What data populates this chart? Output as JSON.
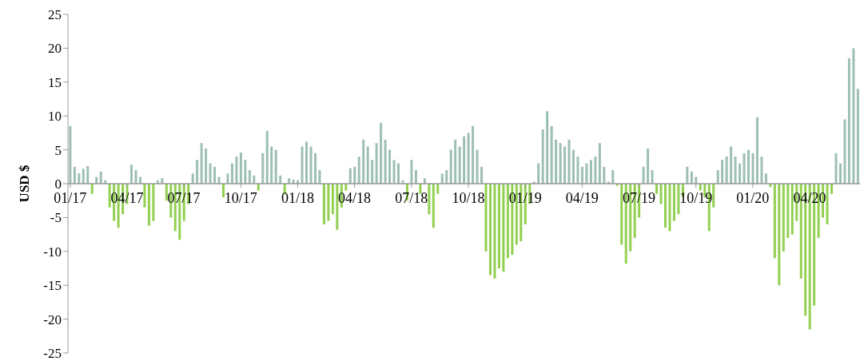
{
  "chart_data": {
    "type": "bar",
    "ylabel": "USD $",
    "categories": [
      "01/17",
      null,
      null,
      null,
      null,
      null,
      null,
      null,
      null,
      null,
      null,
      null,
      null,
      "04/17",
      null,
      null,
      null,
      null,
      null,
      null,
      null,
      null,
      null,
      null,
      null,
      null,
      "07/17",
      null,
      null,
      null,
      null,
      null,
      null,
      null,
      null,
      null,
      null,
      null,
      null,
      "10/17",
      null,
      null,
      null,
      null,
      null,
      null,
      null,
      null,
      null,
      null,
      null,
      null,
      "01/18",
      null,
      null,
      null,
      null,
      null,
      null,
      null,
      null,
      null,
      null,
      null,
      null,
      "04/18",
      null,
      null,
      null,
      null,
      null,
      null,
      null,
      null,
      null,
      null,
      null,
      null,
      "07/18",
      null,
      null,
      null,
      null,
      null,
      null,
      null,
      null,
      null,
      null,
      null,
      null,
      "10/18",
      null,
      null,
      null,
      null,
      null,
      null,
      null,
      null,
      null,
      null,
      null,
      null,
      "01/19",
      null,
      null,
      null,
      null,
      null,
      null,
      null,
      null,
      null,
      null,
      null,
      null,
      "04/19",
      null,
      null,
      null,
      null,
      null,
      null,
      null,
      null,
      null,
      null,
      null,
      null,
      "07/19",
      null,
      null,
      null,
      null,
      null,
      null,
      null,
      null,
      null,
      null,
      null,
      null,
      "10/19",
      null,
      null,
      null,
      null,
      null,
      null,
      null,
      null,
      null,
      null,
      null,
      null,
      "01/20",
      null,
      null,
      null,
      null,
      null,
      null,
      null,
      null,
      null,
      null,
      null,
      null,
      "04/20",
      null,
      null,
      null,
      null,
      null,
      null,
      null,
      null,
      null,
      null,
      null
    ],
    "values": [
      8.5,
      2.5,
      1.5,
      2.2,
      2.6,
      -1.5,
      1,
      1.8,
      0.5,
      -3.5,
      -5.5,
      -6.5,
      -4.5,
      -3,
      2.8,
      2,
      1,
      -3.5,
      -6.2,
      -5.5,
      0.5,
      0.8,
      -2.5,
      -5,
      -7,
      -8.3,
      -5.5,
      -3,
      1.5,
      3.5,
      6,
      5.2,
      3,
      2.5,
      1,
      -2,
      1.5,
      3,
      4,
      4.6,
      3.5,
      2,
      1.2,
      -1,
      4.5,
      7.8,
      5.5,
      5,
      1.2,
      -1.6,
      0.8,
      0.6,
      0.5,
      5.5,
      6.2,
      5.5,
      4.5,
      2,
      -6,
      -5.5,
      -4.5,
      -6.8,
      -3.5,
      -1,
      2.3,
      2.5,
      4,
      6.5,
      5.5,
      3.5,
      6,
      9,
      6.5,
      5,
      3.5,
      3,
      0.5,
      -2.5,
      3.5,
      2,
      -1.5,
      0.8,
      -4.5,
      -6.5,
      -1.5,
      1.5,
      2,
      5,
      6.5,
      5.5,
      7,
      7.5,
      8.5,
      5,
      2.5,
      -10,
      -13.5,
      -14,
      -12.5,
      -13,
      -11,
      -10.5,
      -9,
      -8.5,
      -6,
      -3,
      0.3,
      3,
      8,
      10.7,
      8.5,
      6.5,
      6,
      5.5,
      6.5,
      5,
      4,
      2.5,
      3,
      3.5,
      4,
      6,
      2.5,
      0.3,
      2,
      -0.3,
      -9,
      -11.8,
      -10,
      -8,
      -5,
      2.5,
      5.2,
      2,
      -1.5,
      -3,
      -6.5,
      -7,
      -5.5,
      -4.5,
      -2,
      2.5,
      1.8,
      1,
      -1,
      -2,
      -7,
      -3.5,
      2,
      3.5,
      4,
      5.5,
      4,
      3,
      4.5,
      5,
      4.5,
      9.8,
      4,
      1.5,
      -0.5,
      -11,
      -15,
      -10,
      -8,
      -7.5,
      -5.5,
      -14,
      -19.5,
      -21.5,
      -18,
      -8,
      -5,
      -6,
      -1.5,
      4.5,
      3,
      9.5,
      18.5,
      20,
      14
    ],
    "colors": [
      "#9dbfb2",
      "#9dbfb2",
      "#9dbfb2",
      "#9dbfb2",
      "#9dbfb2",
      "#92d050",
      "#9dbfb2",
      "#9dbfb2",
      "#9dbfb2",
      "#92d050",
      "#92d050",
      "#92d050",
      "#92d050",
      "#92d050",
      "#9dbfb2",
      "#9dbfb2",
      "#9dbfb2",
      "#92d050",
      "#92d050",
      "#92d050",
      "#9dbfb2",
      "#9dbfb2",
      "#92d050",
      "#92d050",
      "#92d050",
      "#92d050",
      "#92d050",
      "#92d050",
      "#9dbfb2",
      "#9dbfb2",
      "#9dbfb2",
      "#9dbfb2",
      "#9dbfb2",
      "#9dbfb2",
      "#9dbfb2",
      "#92d050",
      "#9dbfb2",
      "#9dbfb2",
      "#9dbfb2",
      "#9dbfb2",
      "#9dbfb2",
      "#9dbfb2",
      "#9dbfb2",
      "#92d050",
      "#9dbfb2",
      "#9dbfb2",
      "#9dbfb2",
      "#9dbfb2",
      "#9dbfb2",
      "#92d050",
      "#9dbfb2",
      "#9dbfb2",
      "#9dbfb2",
      "#9dbfb2",
      "#9dbfb2",
      "#9dbfb2",
      "#9dbfb2",
      "#9dbfb2",
      "#92d050",
      "#92d050",
      "#92d050",
      "#92d050",
      "#92d050",
      "#92d050",
      "#9dbfb2",
      "#9dbfb2",
      "#9dbfb2",
      "#9dbfb2",
      "#9dbfb2",
      "#9dbfb2",
      "#9dbfb2",
      "#9dbfb2",
      "#9dbfb2",
      "#9dbfb2",
      "#9dbfb2",
      "#9dbfb2",
      "#9dbfb2",
      "#92d050",
      "#9dbfb2",
      "#9dbfb2",
      "#92d050",
      "#9dbfb2",
      "#92d050",
      "#92d050",
      "#92d050",
      "#9dbfb2",
      "#9dbfb2",
      "#9dbfb2",
      "#9dbfb2",
      "#9dbfb2",
      "#9dbfb2",
      "#9dbfb2",
      "#9dbfb2",
      "#9dbfb2",
      "#9dbfb2",
      "#92d050",
      "#92d050",
      "#92d050",
      "#92d050",
      "#92d050",
      "#92d050",
      "#92d050",
      "#92d050",
      "#92d050",
      "#92d050",
      "#92d050",
      "#9dbfb2",
      "#9dbfb2",
      "#9dbfb2",
      "#9dbfb2",
      "#9dbfb2",
      "#9dbfb2",
      "#9dbfb2",
      "#9dbfb2",
      "#9dbfb2",
      "#9dbfb2",
      "#9dbfb2",
      "#9dbfb2",
      "#9dbfb2",
      "#9dbfb2",
      "#9dbfb2",
      "#9dbfb2",
      "#9dbfb2",
      "#9dbfb2",
      "#9dbfb2",
      "#92d050",
      "#92d050",
      "#92d050",
      "#92d050",
      "#92d050",
      "#92d050",
      "#9dbfb2",
      "#9dbfb2",
      "#9dbfb2",
      "#92d050",
      "#92d050",
      "#92d050",
      "#92d050",
      "#92d050",
      "#92d050",
      "#92d050",
      "#9dbfb2",
      "#9dbfb2",
      "#9dbfb2",
      "#92d050",
      "#92d050",
      "#92d050",
      "#92d050",
      "#9dbfb2",
      "#9dbfb2",
      "#9dbfb2",
      "#9dbfb2",
      "#9dbfb2",
      "#9dbfb2",
      "#9dbfb2",
      "#9dbfb2",
      "#9dbfb2",
      "#9dbfb2",
      "#9dbfb2",
      "#9dbfb2",
      "#92d050",
      "#92d050",
      "#92d050",
      "#92d050",
      "#92d050",
      "#92d050",
      "#92d050",
      "#92d050",
      "#92d050",
      "#92d050",
      "#92d050",
      "#92d050",
      "#92d050",
      "#92d050",
      "#92d050",
      "#9dbfb2",
      "#9dbfb2",
      "#9dbfb2",
      "#9dbfb2",
      "#9dbfb2",
      "#9dbfb2"
    ],
    "ylim": [
      -25,
      25
    ],
    "yticks": [
      -25,
      -20,
      -15,
      -10,
      -5,
      0,
      5,
      10,
      15,
      20,
      25
    ]
  }
}
